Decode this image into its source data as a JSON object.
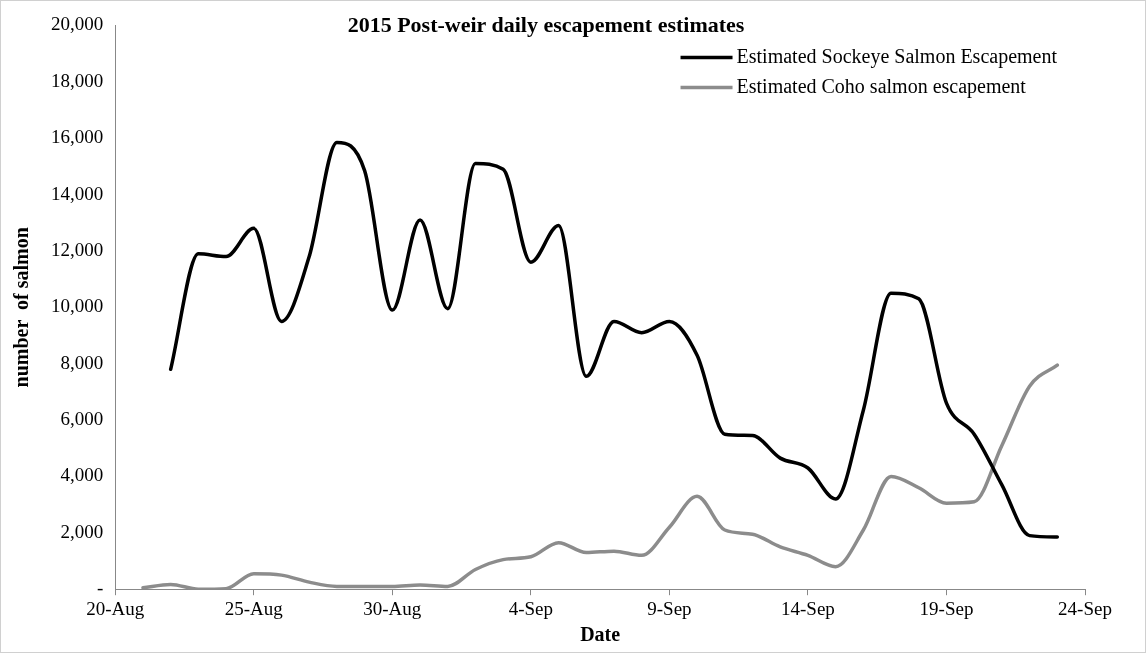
{
  "chart_data": {
    "type": "line",
    "title": "2015 Post-weir daily escapement estimates",
    "xlabel": "Date",
    "ylabel": "number  of salmon",
    "x": [
      "2015-08-21",
      "2015-08-22",
      "2015-08-23",
      "2015-08-24",
      "2015-08-25",
      "2015-08-26",
      "2015-08-27",
      "2015-08-28",
      "2015-08-29",
      "2015-08-30",
      "2015-08-31",
      "2015-09-01",
      "2015-09-02",
      "2015-09-03",
      "2015-09-04",
      "2015-09-05",
      "2015-09-06",
      "2015-09-07",
      "2015-09-08",
      "2015-09-09",
      "2015-09-10",
      "2015-09-11",
      "2015-09-12",
      "2015-09-13",
      "2015-09-14",
      "2015-09-15",
      "2015-09-16",
      "2015-09-17",
      "2015-09-18",
      "2015-09-19",
      "2015-09-20",
      "2015-09-21",
      "2015-09-22",
      "2015-09-23"
    ],
    "series": [
      {
        "name": "Estimated Sockeye Salmon Escapement",
        "color": "#000000",
        "values": [
          null,
          7800,
          11900,
          11800,
          12800,
          9500,
          11800,
          15850,
          14850,
          9900,
          13100,
          9950,
          15100,
          14900,
          11600,
          12900,
          7550,
          9500,
          9100,
          9500,
          8300,
          5500,
          5450,
          4650,
          4300,
          3200,
          6350,
          10500,
          10300,
          6600,
          5500,
          3700,
          1900,
          1850
        ]
      },
      {
        "name": "Estimated Coho salmon escapement",
        "color": "#8c8c8c",
        "values": [
          50,
          170,
          0,
          20,
          550,
          500,
          250,
          100,
          100,
          100,
          150,
          100,
          700,
          1050,
          1150,
          1650,
          1300,
          1350,
          1200,
          2200,
          3300,
          2100,
          1950,
          1500,
          1200,
          800,
          2100,
          4000,
          3600,
          3050,
          3100,
          5100,
          7200,
          7950
        ]
      }
    ],
    "xlim": [
      "2015-08-20",
      "2015-09-24"
    ],
    "xticks": [
      {
        "value": "2015-08-20",
        "label": "20-Aug"
      },
      {
        "value": "2015-08-25",
        "label": "25-Aug"
      },
      {
        "value": "2015-08-30",
        "label": "30-Aug"
      },
      {
        "value": "2015-09-04",
        "label": "4-Sep"
      },
      {
        "value": "2015-09-09",
        "label": "9-Sep"
      },
      {
        "value": "2015-09-14",
        "label": "14-Sep"
      },
      {
        "value": "2015-09-19",
        "label": "19-Sep"
      },
      {
        "value": "2015-09-24",
        "label": "24-Sep"
      }
    ],
    "ylim": [
      0,
      20000
    ],
    "yticks": [
      {
        "value": 0,
        "label": "-"
      },
      {
        "value": 2000,
        "label": "2,000"
      },
      {
        "value": 4000,
        "label": "4,000"
      },
      {
        "value": 6000,
        "label": "6,000"
      },
      {
        "value": 8000,
        "label": "8,000"
      },
      {
        "value": 10000,
        "label": "10,000"
      },
      {
        "value": 12000,
        "label": "12,000"
      },
      {
        "value": 14000,
        "label": "14,000"
      },
      {
        "value": 16000,
        "label": "16,000"
      },
      {
        "value": 18000,
        "label": "18,000"
      },
      {
        "value": 20000,
        "label": "20,000"
      }
    ],
    "grid": false,
    "legend": "top right",
    "marker": "none",
    "line_style": "solid"
  }
}
